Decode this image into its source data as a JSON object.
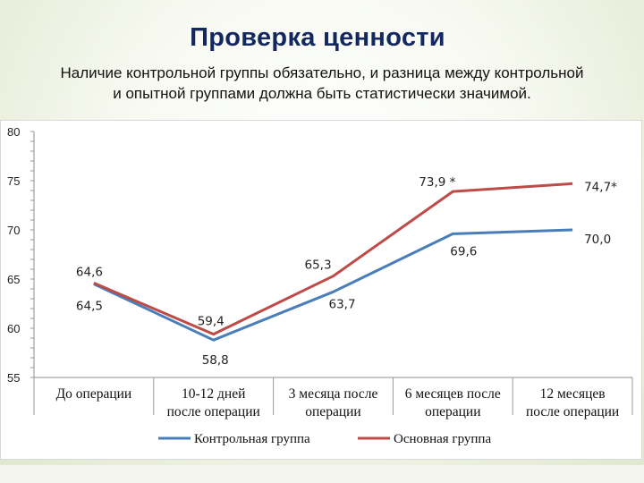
{
  "slide": {
    "title": "Проверка ценности",
    "subtitle_line1": "Наличие контрольной группы обязательно, и разница между контрольной",
    "subtitle_line2": "и опытной группами должна быть статистически значимой."
  },
  "chart_data": {
    "type": "line",
    "categories": [
      [
        "До операции"
      ],
      [
        "10-12 дней",
        "после операции"
      ],
      [
        "3 месяца после",
        "операции"
      ],
      [
        "6 месяцев после",
        "операции"
      ],
      [
        "12 месяцев",
        "после операции"
      ]
    ],
    "ylim": [
      55,
      80
    ],
    "yticks": [
      55,
      60,
      65,
      70,
      75,
      80
    ],
    "grid": false,
    "legend_position": "bottom",
    "series": [
      {
        "name": "Контрольная группа",
        "color": "#4a7ebb",
        "values": [
          64.5,
          58.8,
          63.7,
          69.6,
          70.0
        ],
        "labels": [
          "64,5",
          "58,8",
          "63,7",
          "69,6",
          "70,0"
        ]
      },
      {
        "name": "Основная группа",
        "color": "#be4b48",
        "values": [
          64.6,
          59.4,
          65.3,
          73.9,
          74.7
        ],
        "labels": [
          "64,6",
          "59,4",
          "65,3",
          "73,9 *",
          "74,7*"
        ]
      }
    ]
  }
}
